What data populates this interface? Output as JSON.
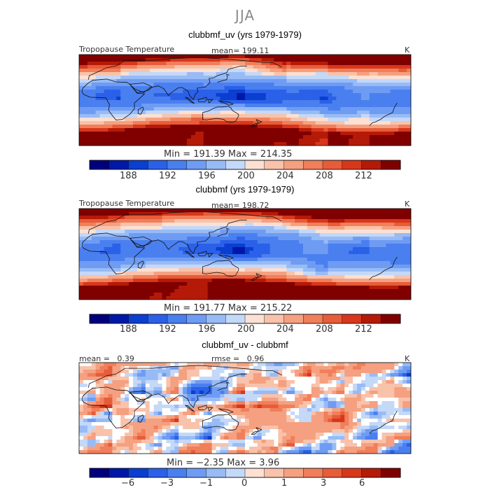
{
  "page_title": "JJA",
  "chart_data": [
    {
      "type": "heatmap",
      "title": "clubbmf_uv (yrs 1979-1979)",
      "field": "Tropopause Temperature",
      "mean_label": "mean=",
      "mean": "199.11",
      "units": "K",
      "min_label": "Min =",
      "min": "191.39",
      "max_label": "Max =",
      "max": "214.35",
      "colorbar_ticks": [
        "188",
        "192",
        "196",
        "200",
        "204",
        "208",
        "212"
      ],
      "colorbar_range": [
        184,
        216
      ],
      "colorbar_levels": [
        184,
        186,
        188,
        190,
        192,
        194,
        196,
        198,
        200,
        202,
        204,
        206,
        208,
        210,
        212,
        214,
        216
      ]
    },
    {
      "type": "heatmap",
      "title": "clubbmf (yrs 1979-1979)",
      "field": "Tropopause Temperature",
      "mean_label": "mean=",
      "mean": "198.72",
      "units": "K",
      "min_label": "Min =",
      "min": "191.77",
      "max_label": "Max =",
      "max": "215.22",
      "colorbar_ticks": [
        "188",
        "192",
        "196",
        "200",
        "204",
        "208",
        "212"
      ],
      "colorbar_range": [
        184,
        216
      ]
    },
    {
      "type": "heatmap",
      "title": "clubbmf_uv - clubbmf",
      "mean_label": "mean =",
      "mean": "0.39",
      "rmse_label": "rmse =",
      "rmse": "0.96",
      "units": "K",
      "min_label": "Min =",
      "min": "−2.35",
      "max_label": "Max =",
      "max": "3.96",
      "colorbar_ticks": [
        "−6",
        "−3",
        "−1",
        "0",
        "1",
        "3",
        "6"
      ],
      "colorbar_levels": [
        -8,
        -6,
        -4,
        -3,
        -2,
        -1,
        -0.5,
        0,
        0.5,
        1,
        2,
        3,
        4,
        6,
        8
      ]
    }
  ],
  "colors": {
    "palette": [
      "#00007f",
      "#0018a8",
      "#0a3fd0",
      "#2b60e8",
      "#4a7fef",
      "#6f9cf3",
      "#98bbf6",
      "#c4d8f8",
      "#fbe0d3",
      "#f8c2ab",
      "#f5a080",
      "#f07f5a",
      "#e75c39",
      "#d8371c",
      "#b51a08",
      "#800000"
    ],
    "land_outline": "#111111",
    "panel_border": "#000000"
  }
}
